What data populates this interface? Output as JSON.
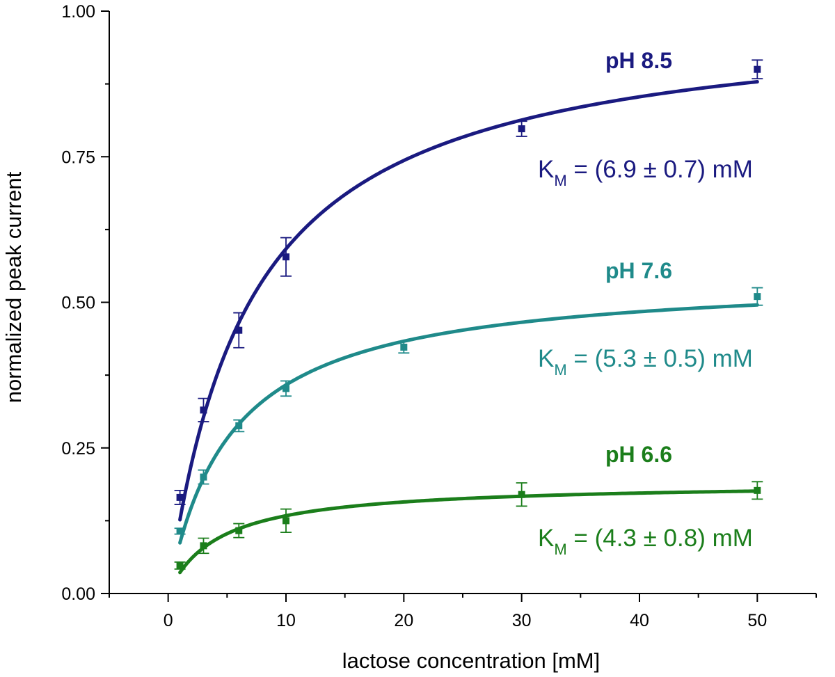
{
  "chart_data": {
    "type": "scatter",
    "title": "",
    "xlabel": "lactose concentration [mM]",
    "ylabel": "normalized peak current",
    "xlim": [
      -5,
      55
    ],
    "ylim": [
      0,
      1
    ],
    "x_ticks": [
      0,
      10,
      20,
      30,
      40,
      50
    ],
    "x_tick_labels": [
      "0",
      "10",
      "20",
      "30",
      "40",
      "50"
    ],
    "y_ticks": [
      0,
      0.25,
      0.5,
      0.75,
      1.0
    ],
    "y_tick_labels": [
      "0.00",
      "0.25",
      "0.50",
      "0.75",
      "1.00"
    ],
    "series": [
      {
        "name": "pH 8.5",
        "label": "pH 8.5",
        "km_prefix": "K",
        "km_sub": "M",
        "km_value": " = (6.9 ± 0.7) mM",
        "color": "#1a1a80",
        "vmax": 1.0,
        "km": 6.9,
        "fit_range": [
          1,
          50
        ],
        "points": [
          {
            "x": 1,
            "y": 0.165,
            "err": 0.012
          },
          {
            "x": 3,
            "y": 0.315,
            "err": 0.02
          },
          {
            "x": 6,
            "y": 0.452,
            "err": 0.03
          },
          {
            "x": 10,
            "y": 0.578,
            "err": 0.033
          },
          {
            "x": 30,
            "y": 0.798,
            "err": 0.013
          },
          {
            "x": 50,
            "y": 0.9,
            "err": 0.016
          }
        ]
      },
      {
        "name": "pH 7.6",
        "label": "pH 7.6",
        "km_prefix": "K",
        "km_sub": "M",
        "km_value": " = (5.3 ± 0.5) mM",
        "color": "#1f8a8a",
        "vmax": 0.548,
        "km": 5.3,
        "fit_range": [
          1,
          50
        ],
        "points": [
          {
            "x": 1,
            "y": 0.107,
            "err": 0.005
          },
          {
            "x": 3,
            "y": 0.2,
            "err": 0.012
          },
          {
            "x": 6,
            "y": 0.288,
            "err": 0.01
          },
          {
            "x": 10,
            "y": 0.352,
            "err": 0.013
          },
          {
            "x": 20,
            "y": 0.423,
            "err": 0.01
          },
          {
            "x": 50,
            "y": 0.51,
            "err": 0.015
          }
        ]
      },
      {
        "name": "pH 6.6",
        "label": "pH 6.6",
        "km_prefix": "K",
        "km_sub": "M",
        "km_value": " = (4.3 ± 0.8) mM",
        "color": "#1b7e1b",
        "vmax": 0.191,
        "km": 4.3,
        "fit_range": [
          1,
          50
        ],
        "points": [
          {
            "x": 1,
            "y": 0.048,
            "err": 0.006
          },
          {
            "x": 3,
            "y": 0.082,
            "err": 0.013
          },
          {
            "x": 6,
            "y": 0.108,
            "err": 0.012
          },
          {
            "x": 10,
            "y": 0.125,
            "err": 0.02
          },
          {
            "x": 30,
            "y": 0.17,
            "err": 0.02
          },
          {
            "x": 50,
            "y": 0.177,
            "err": 0.015
          }
        ]
      }
    ]
  }
}
